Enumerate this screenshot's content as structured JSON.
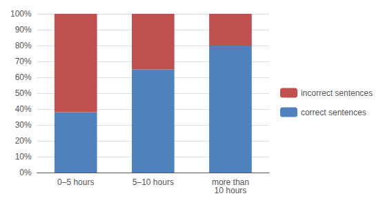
{
  "chart_data": {
    "type": "bar",
    "stacked": true,
    "categories": [
      "0–5 hours",
      "5–10 hours",
      "more than\n10 hours"
    ],
    "series": [
      {
        "name": "correct sentences",
        "color": "#4F81BD",
        "values": [
          38,
          65,
          80
        ]
      },
      {
        "name": "incorrect sentences",
        "color": "#C0504D",
        "values": [
          62,
          35,
          20
        ]
      }
    ],
    "ylim": [
      0,
      100
    ],
    "yticks": [
      {
        "value": 0,
        "label": "0%"
      },
      {
        "value": 10,
        "label": "10%"
      },
      {
        "value": 20,
        "label": "20%"
      },
      {
        "value": 30,
        "label": "30%"
      },
      {
        "value": 40,
        "label": "40%"
      },
      {
        "value": 50,
        "label": "50%"
      },
      {
        "value": 60,
        "label": "60%"
      },
      {
        "value": 70,
        "label": "70%"
      },
      {
        "value": 80,
        "label": "80%"
      },
      {
        "value": 90,
        "label": "90%"
      },
      {
        "value": 100,
        "label": "100%"
      }
    ],
    "grid": true,
    "legend": "right"
  }
}
